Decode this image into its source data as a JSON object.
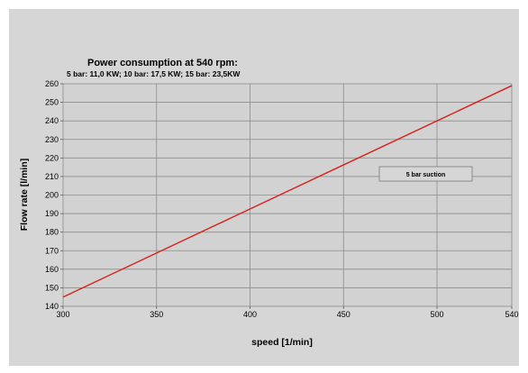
{
  "chart_data": {
    "type": "line",
    "title": "Power consumption at 540 rpm:",
    "subtitle": "5 bar: 11,0 KW; 10 bar: 17,5 KW; 15 bar: 23,5KW",
    "xlabel": "speed [1/min]",
    "ylabel": "Flow rate [l/min]",
    "xlim": [
      300,
      540
    ],
    "ylim": [
      140,
      260
    ],
    "x_ticks": [
      "300",
      "350",
      "400",
      "450",
      "500",
      "540"
    ],
    "y_ticks": [
      "140",
      "150",
      "160",
      "170",
      "180",
      "190",
      "200",
      "210",
      "220",
      "230",
      "240",
      "250",
      "260"
    ],
    "grid": "vertical lines at 350, 400, 450, 500; horizontal lines every 10",
    "legend": "center-right",
    "series": [
      {
        "name": "5 bar suction",
        "color": "#d9201a",
        "x": [
          300,
          540
        ],
        "y": [
          145,
          259
        ]
      }
    ]
  },
  "colors": {
    "background": "#ffffff",
    "panel": "#d6d6d6",
    "plot_area": "#d2d2d2",
    "grid": "#8c8c8c",
    "series": "#d9201a"
  }
}
